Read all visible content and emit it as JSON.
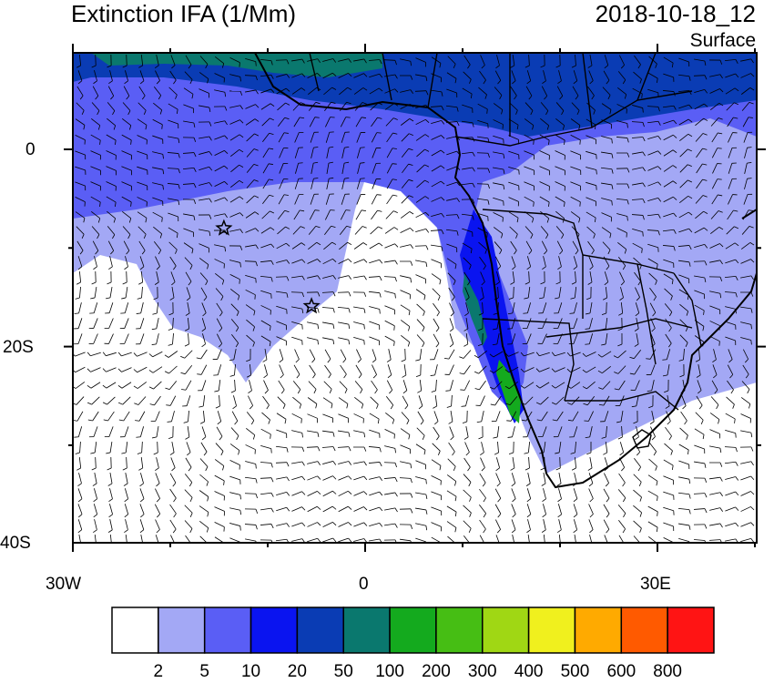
{
  "title": "Extinction IFA (1/Mm)",
  "valid_time": "2018-10-18_12",
  "level": "Surface",
  "axes": {
    "lat_labels": [
      "0",
      "20S",
      "40S"
    ],
    "lon_labels": [
      "30W",
      "0",
      "30E"
    ]
  },
  "colorbar": {
    "levels": [
      "2",
      "5",
      "10",
      "20",
      "50",
      "100",
      "200",
      "300",
      "400",
      "500",
      "600",
      "800"
    ],
    "colors": [
      "#ffffff",
      "#a3a8f5",
      "#5a5ef5",
      "#0a14f0",
      "#0a3cb4",
      "#0a786e",
      "#14aa1e",
      "#46be14",
      "#a0d714",
      "#f0f01e",
      "#ffaa00",
      "#ff5a00",
      "#ff1414"
    ]
  },
  "markers": [
    {
      "name": "star-marker",
      "lon": -14.5,
      "lat": -8.0
    },
    {
      "name": "star-marker",
      "lon": -5.5,
      "lat": -15.9
    }
  ]
}
